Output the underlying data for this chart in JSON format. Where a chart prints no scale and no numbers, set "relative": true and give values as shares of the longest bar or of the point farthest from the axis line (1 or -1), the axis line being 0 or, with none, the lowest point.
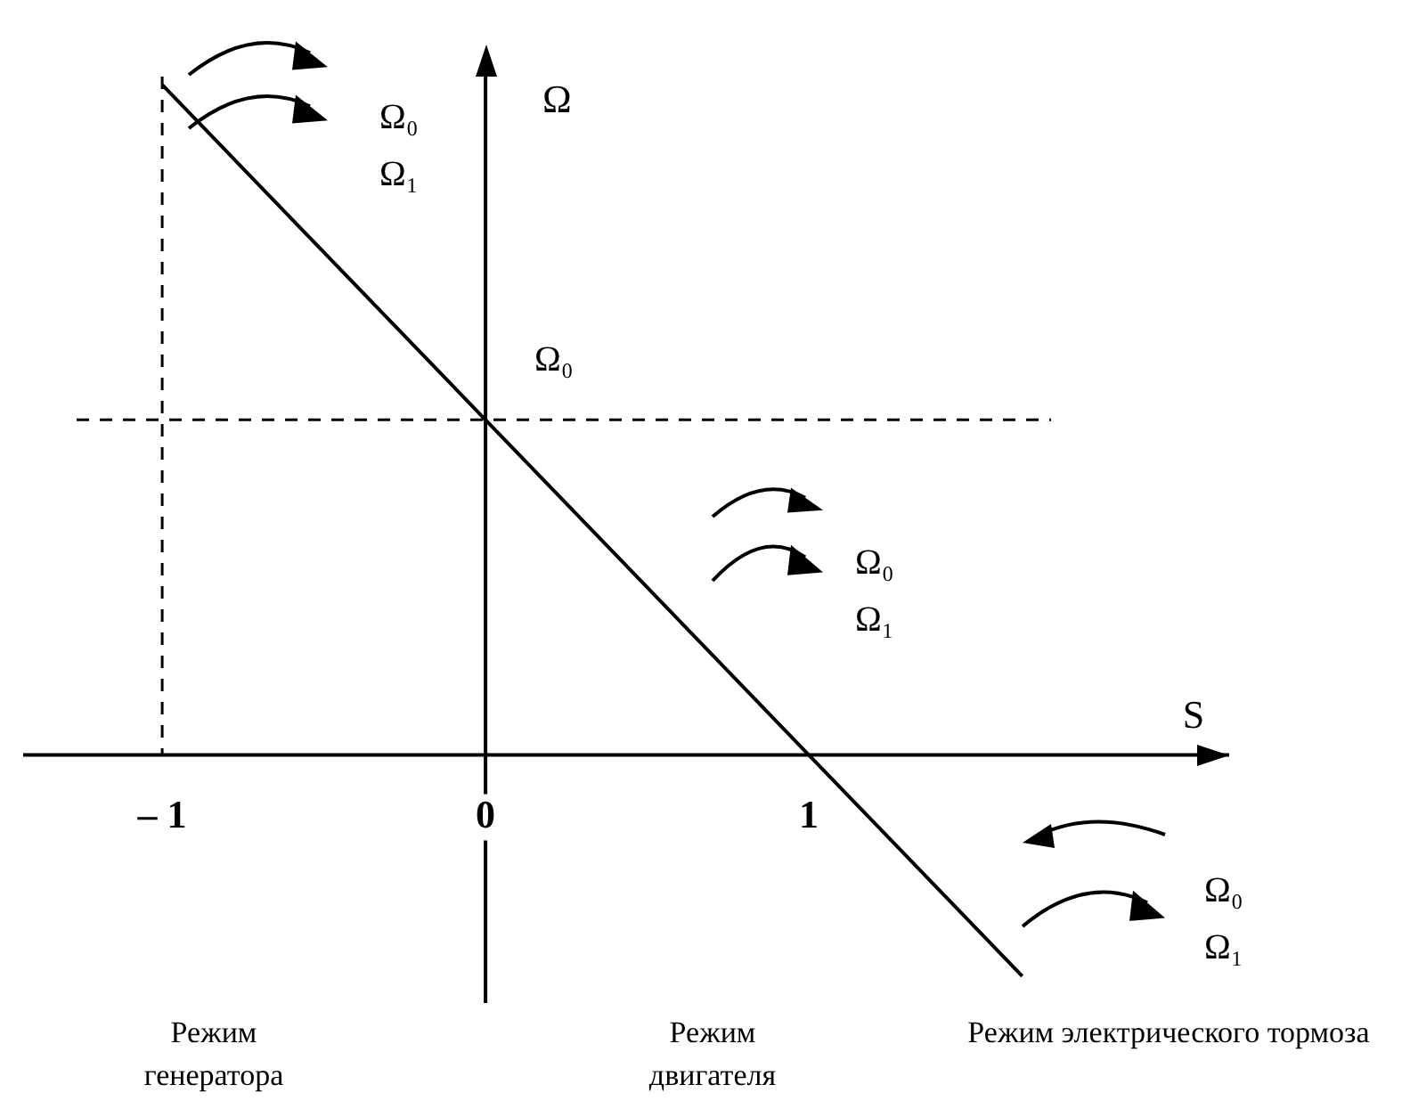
{
  "chart_data": {
    "type": "line",
    "relative": true,
    "xlabel": "S",
    "ylabel": "Ω",
    "x": [
      -1,
      0,
      1,
      1.66
    ],
    "series": [
      {
        "color": "#000000",
        "values": [
          1,
          0.5,
          0,
          -0.33
        ]
      }
    ],
    "xlim": [
      -1.43,
      2.3
    ],
    "xticks": [
      {
        "value": -1,
        "label": "– 1"
      },
      0,
      1
    ],
    "ref_lines": [
      {
        "axis": "x",
        "value": -1,
        "line_style": "dashed"
      },
      {
        "axis": "y",
        "value": 0.5,
        "line_style": "dashed"
      }
    ],
    "annotations": [
      "Ω₀",
      "Ω₀",
      "Ω₁",
      "Ω₀",
      "Ω₁",
      "Ω₀",
      "Ω₁",
      "Режим генератора",
      "Режим двигателя",
      "Режим электрического тормоза"
    ],
    "grid": false,
    "legend": false,
    "marker": "none"
  }
}
